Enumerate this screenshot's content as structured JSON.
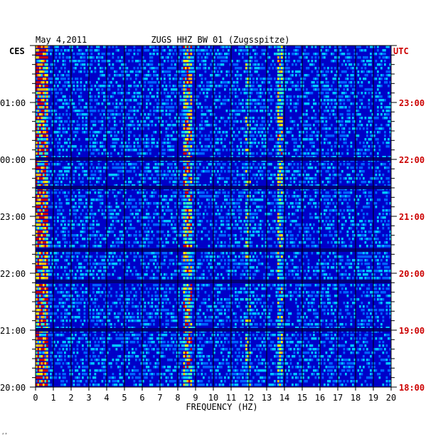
{
  "header": {
    "date": "May 4,2011",
    "station": "ZUGS HHZ BW 01 (Zugsspitze)",
    "left_timezone": "CES",
    "right_timezone": "UTC"
  },
  "footer_mark": "‘’",
  "colors": {
    "background": "#ffffff",
    "spectrogram_base": "#0000c8",
    "grid": "#000000",
    "left_labels": "#000000",
    "right_labels": "#cc0000"
  },
  "chart_data": {
    "type": "heatmap",
    "title": "ZUGS HHZ BW 01 (Zugsspitze)",
    "xlabel": "FREQUENCY (HZ)",
    "xlim": [
      0,
      20
    ],
    "x_ticks": [
      "0",
      "1",
      "2",
      "3",
      "4",
      "5",
      "6",
      "7",
      "8",
      "9",
      "10",
      "11",
      "12",
      "13",
      "14",
      "15",
      "16",
      "17",
      "18",
      "19",
      "20"
    ],
    "y_ticks_left": [
      "01:00",
      "00:00",
      "23:00",
      "22:00",
      "21:00",
      "20:00"
    ],
    "y_ticks_right": [
      "23:00",
      "22:00",
      "21:00",
      "20:00",
      "19:00",
      "18:00"
    ],
    "y_hours_from_bottom": [
      5,
      4,
      3,
      2,
      1,
      0
    ],
    "ylim_hours": [
      0,
      6
    ],
    "bands": [
      {
        "name": "low-frequency noise",
        "freq_range_hz": [
          0.0,
          0.7
        ],
        "intensity": 0.85
      },
      {
        "name": "band 8.5 Hz",
        "freq_range_hz": [
          8.3,
          8.8
        ],
        "intensity": 0.6
      },
      {
        "name": "band 13.8 Hz",
        "freq_range_hz": [
          13.6,
          13.9
        ],
        "intensity": 0.5
      },
      {
        "name": "band 12 Hz",
        "freq_range_hz": [
          11.8,
          12.1
        ],
        "intensity": 0.3
      }
    ],
    "dark_gaps_hours": [
      4.0,
      3.5,
      2.4,
      1.85,
      1.0
    ]
  }
}
